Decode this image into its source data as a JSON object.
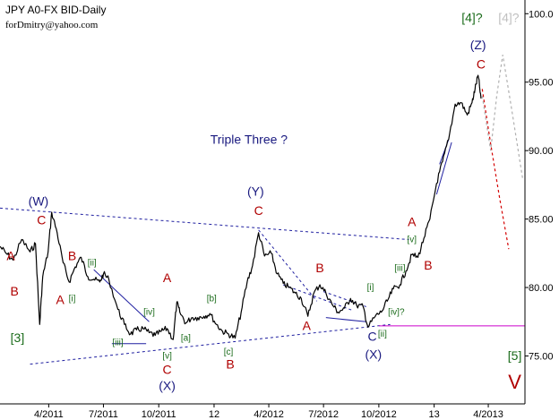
{
  "header": {
    "title": "JPY A0-FX BID-Daily",
    "author": "forDmitry@yahoo.com"
  },
  "chart_data": {
    "type": "line",
    "subtitle_note": "Triple Three ?",
    "y_ticks": [
      75.0,
      80.0,
      85.0,
      90.0,
      95.0,
      100.0
    ],
    "y_tick_labels": [
      "75.00",
      "80.00",
      "85.00",
      "90.00",
      "95.00",
      "100.0"
    ],
    "ylim": [
      71.5,
      101.0
    ],
    "xlim": [
      "2011-01-10",
      "2013-06-01"
    ],
    "x_ticks": [
      "2011-04-01",
      "2011-07-01",
      "2011-10-01",
      "2012-01-01",
      "2012-04-01",
      "2012-07-01",
      "2012-10-01",
      "2013-01-01",
      "2013-04-01"
    ],
    "x_tick_labels": [
      "4/2011",
      "7/2011",
      "10/2011",
      "12",
      "4/2012",
      "7/2012",
      "10/2012",
      "13",
      "4/2013"
    ],
    "series": [
      {
        "points": [
          [
            "2011-01-10",
            83.0
          ],
          [
            "2011-01-20",
            82.5
          ],
          [
            "2011-02-01",
            82.0
          ],
          [
            "2011-02-15",
            83.5
          ],
          [
            "2011-03-01",
            82.6
          ],
          [
            "2011-03-10",
            83.2
          ],
          [
            "2011-03-17",
            77.3
          ],
          [
            "2011-03-22",
            80.8
          ],
          [
            "2011-03-31",
            82.6
          ],
          [
            "2011-04-06",
            85.5
          ],
          [
            "2011-04-15",
            84.0
          ],
          [
            "2011-04-25",
            81.8
          ],
          [
            "2011-05-05",
            80.4
          ],
          [
            "2011-05-15",
            81.5
          ],
          [
            "2011-05-25",
            82.2
          ],
          [
            "2011-06-05",
            80.8
          ],
          [
            "2011-06-15",
            80.6
          ],
          [
            "2011-06-25",
            80.4
          ],
          [
            "2011-07-01",
            81.0
          ],
          [
            "2011-07-10",
            80.6
          ],
          [
            "2011-07-25",
            78.4
          ],
          [
            "2011-08-05",
            77.3
          ],
          [
            "2011-08-15",
            76.6
          ],
          [
            "2011-08-25",
            76.9
          ],
          [
            "2011-09-05",
            77.0
          ],
          [
            "2011-09-15",
            76.7
          ],
          [
            "2011-09-25",
            76.5
          ],
          [
            "2011-10-05",
            76.8
          ],
          [
            "2011-10-15",
            77.0
          ],
          [
            "2011-10-25",
            76.2
          ],
          [
            "2011-10-31",
            78.9
          ],
          [
            "2011-11-05",
            78.2
          ],
          [
            "2011-11-15",
            77.4
          ],
          [
            "2011-11-25",
            77.8
          ],
          [
            "2011-12-05",
            77.8
          ],
          [
            "2011-12-15",
            77.9
          ],
          [
            "2011-12-25",
            78.1
          ],
          [
            "2012-01-05",
            77.3
          ],
          [
            "2012-01-15",
            76.8
          ],
          [
            "2012-01-25",
            76.6
          ],
          [
            "2012-02-05",
            76.3
          ],
          [
            "2012-02-15",
            78.2
          ],
          [
            "2012-02-25",
            80.4
          ],
          [
            "2012-03-05",
            81.6
          ],
          [
            "2012-03-15",
            84.0
          ],
          [
            "2012-03-25",
            82.3
          ],
          [
            "2012-04-05",
            82.5
          ],
          [
            "2012-04-15",
            81.0
          ],
          [
            "2012-04-25",
            80.3
          ],
          [
            "2012-05-05",
            80.0
          ],
          [
            "2012-05-15",
            79.6
          ],
          [
            "2012-05-25",
            79.2
          ],
          [
            "2012-06-05",
            77.9
          ],
          [
            "2012-06-15",
            79.6
          ],
          [
            "2012-06-25",
            80.2
          ],
          [
            "2012-07-05",
            79.6
          ],
          [
            "2012-07-15",
            78.8
          ],
          [
            "2012-07-25",
            78.2
          ],
          [
            "2012-08-05",
            78.5
          ],
          [
            "2012-08-15",
            79.2
          ],
          [
            "2012-08-25",
            78.7
          ],
          [
            "2012-09-05",
            78.6
          ],
          [
            "2012-09-13",
            77.1
          ],
          [
            "2012-09-25",
            77.9
          ],
          [
            "2012-10-05",
            78.2
          ],
          [
            "2012-10-15",
            79.0
          ],
          [
            "2012-10-25",
            79.9
          ],
          [
            "2012-11-05",
            80.2
          ],
          [
            "2012-11-15",
            81.2
          ],
          [
            "2012-11-25",
            82.4
          ],
          [
            "2012-12-05",
            82.2
          ],
          [
            "2012-12-15",
            83.6
          ],
          [
            "2012-12-25",
            85.0
          ],
          [
            "2013-01-05",
            87.6
          ],
          [
            "2013-01-15",
            89.2
          ],
          [
            "2013-01-25",
            90.8
          ],
          [
            "2013-02-05",
            93.4
          ],
          [
            "2013-02-15",
            93.5
          ],
          [
            "2013-02-25",
            92.6
          ],
          [
            "2013-03-05",
            93.5
          ],
          [
            "2013-03-10",
            94.5
          ],
          [
            "2013-03-15",
            95.5
          ],
          [
            "2013-03-20",
            93.8
          ]
        ]
      }
    ],
    "forecast_red": [
      [
        "2013-03-22",
        94.5
      ],
      [
        "2013-04-05",
        90.5
      ],
      [
        "2013-04-20",
        86.5
      ],
      [
        "2013-05-05",
        82.8
      ]
    ],
    "forecast_grey": [
      [
        "2013-03-22",
        94.0
      ],
      [
        "2013-04-05",
        90.0
      ],
      [
        "2013-04-15",
        94.0
      ],
      [
        "2013-04-25",
        97.0
      ],
      [
        "2013-05-10",
        93.0
      ],
      [
        "2013-05-28",
        88.0
      ]
    ],
    "trendlines": [
      {
        "style": "dotted",
        "color": "#1f1fa0",
        "from": [
          "2011-01-10",
          85.8
        ],
        "to": [
          "2012-11-20",
          83.5
        ]
      },
      {
        "style": "dotted",
        "color": "#1f1fa0",
        "from": [
          "2011-03-01",
          74.4
        ],
        "to": [
          "2012-10-20",
          77.3
        ]
      },
      {
        "style": "solid",
        "color": "#cc00cc",
        "from": [
          "2012-10-01",
          77.2
        ],
        "to": [
          "2013-06-01",
          77.2
        ]
      },
      {
        "style": "solid",
        "color": "#1f1fa0",
        "from": [
          "2011-06-15",
          81.3
        ],
        "to": [
          "2011-09-15",
          77.5
        ]
      },
      {
        "style": "solid",
        "color": "#1f1fa0",
        "from": [
          "2011-07-15",
          75.9
        ],
        "to": [
          "2011-09-10",
          75.9
        ]
      },
      {
        "style": "dotted",
        "color": "#1f1fa0",
        "from": [
          "2012-03-15",
          84.2
        ],
        "to": [
          "2012-06-20",
          79.0
        ]
      },
      {
        "style": "dotted",
        "color": "#1f1fa0",
        "from": [
          "2012-04-25",
          80.2
        ],
        "to": [
          "2012-08-20",
          78.3
        ]
      },
      {
        "style": "dotted",
        "color": "#1f1fa0",
        "from": [
          "2012-07-01",
          79.7
        ],
        "to": [
          "2012-09-10",
          78.6
        ]
      },
      {
        "style": "solid",
        "color": "#1f1fa0",
        "from": [
          "2012-07-05",
          77.8
        ],
        "to": [
          "2012-09-10",
          77.5
        ]
      },
      {
        "style": "solid",
        "color": "#1f1fa0",
        "from": [
          "2013-01-05",
          86.8
        ],
        "to": [
          "2013-01-30",
          90.6
        ]
      },
      {
        "style": "solid",
        "color": "#1f1fa0",
        "from": [
          "2013-01-10",
          89.0
        ],
        "to": [
          "2013-01-25",
          90.8
        ]
      }
    ],
    "annotations": [
      {
        "text": "(W)",
        "x": "2011-03-15",
        "y": 86.0,
        "color": "#1a1a80",
        "size": 14
      },
      {
        "text": "C",
        "x": "2011-03-20",
        "y": 84.6,
        "color": "#b00000",
        "size": 14
      },
      {
        "text": "A",
        "x": "2011-01-28",
        "y": 82.0,
        "color": "#b00000",
        "size": 14
      },
      {
        "text": "B",
        "x": "2011-02-03",
        "y": 79.4,
        "color": "#b00000",
        "size": 14
      },
      {
        "text": "[3]",
        "x": "2011-02-08",
        "y": 76.0,
        "color": "#1a6b1a",
        "size": 14
      },
      {
        "text": "B",
        "x": "2011-05-10",
        "y": 82.0,
        "color": "#b00000",
        "size": 14
      },
      {
        "text": "A",
        "x": "2011-04-20",
        "y": 78.8,
        "color": "#b00000",
        "size": 14
      },
      {
        "text": "[i]",
        "x": "2011-05-10",
        "y": 79.0,
        "color": "#1a6b1a",
        "size": 10
      },
      {
        "text": "[ii]",
        "x": "2011-06-12",
        "y": 81.6,
        "color": "#1a6b1a",
        "size": 10
      },
      {
        "text": "[iii]",
        "x": "2011-07-25",
        "y": 75.8,
        "color": "#1a6b1a",
        "size": 10
      },
      {
        "text": "[iv]",
        "x": "2011-09-15",
        "y": 78.0,
        "color": "#1a6b1a",
        "size": 10
      },
      {
        "text": "[v]",
        "x": "2011-10-15",
        "y": 74.8,
        "color": "#1a6b1a",
        "size": 10
      },
      {
        "text": "A",
        "x": "2011-10-15",
        "y": 80.4,
        "color": "#b00000",
        "size": 14
      },
      {
        "text": "C",
        "x": "2011-10-15",
        "y": 73.7,
        "color": "#b00000",
        "size": 14
      },
      {
        "text": "(X)",
        "x": "2011-10-15",
        "y": 72.5,
        "color": "#1a1a80",
        "size": 14
      },
      {
        "text": "[a]",
        "x": "2011-11-15",
        "y": 76.1,
        "color": "#1a6b1a",
        "size": 10
      },
      {
        "text": "[b]",
        "x": "2011-12-28",
        "y": 79.0,
        "color": "#1a6b1a",
        "size": 10
      },
      {
        "text": "[c]",
        "x": "2012-01-25",
        "y": 75.1,
        "color": "#1a6b1a",
        "size": 10
      },
      {
        "text": "B",
        "x": "2012-01-28",
        "y": 74.1,
        "color": "#b00000",
        "size": 14
      },
      {
        "text": "Triple Three ?",
        "x": "2012-02-28",
        "y": 90.5,
        "color": "#1a1a80",
        "size": 14
      },
      {
        "text": "(Y)",
        "x": "2012-03-10",
        "y": 86.7,
        "color": "#1a1a80",
        "size": 14
      },
      {
        "text": "C",
        "x": "2012-03-15",
        "y": 85.3,
        "color": "#b00000",
        "size": 14
      },
      {
        "text": "B",
        "x": "2012-06-25",
        "y": 81.1,
        "color": "#b00000",
        "size": 14
      },
      {
        "text": "A",
        "x": "2012-06-03",
        "y": 76.9,
        "color": "#b00000",
        "size": 14
      },
      {
        "text": "[i]",
        "x": "2012-09-17",
        "y": 79.8,
        "color": "#1a6b1a",
        "size": 10
      },
      {
        "text": "C",
        "x": "2012-09-20",
        "y": 76.1,
        "color": "#1a1a80",
        "size": 14
      },
      {
        "text": "(X)",
        "x": "2012-09-22",
        "y": 74.8,
        "color": "#1a1a80",
        "size": 14
      },
      {
        "text": "[ii]",
        "x": "2012-10-07",
        "y": 76.4,
        "color": "#1a6b1a",
        "size": 10
      },
      {
        "text": "[iii]",
        "x": "2012-11-05",
        "y": 81.2,
        "color": "#1a6b1a",
        "size": 10
      },
      {
        "text": "[iv]?",
        "x": "2012-10-30",
        "y": 78.0,
        "color": "#1a6b1a",
        "size": 10
      },
      {
        "text": "A",
        "x": "2012-11-25",
        "y": 84.5,
        "color": "#b00000",
        "size": 14
      },
      {
        "text": "[v]",
        "x": "2012-11-25",
        "y": 83.3,
        "color": "#1a6b1a",
        "size": 10
      },
      {
        "text": "B",
        "x": "2012-12-22",
        "y": 81.3,
        "color": "#b00000",
        "size": 14
      },
      {
        "text": "[4]?",
        "x": "2013-03-05",
        "y": 99.4,
        "color": "#1a6b1a",
        "size": 14
      },
      {
        "text": "(Z)",
        "x": "2013-03-15",
        "y": 97.4,
        "color": "#1a1a80",
        "size": 14
      },
      {
        "text": "C",
        "x": "2013-03-20",
        "y": 96.0,
        "color": "#b00000",
        "size": 14
      },
      {
        "text": "[4]?",
        "x": "2013-05-05",
        "y": 99.4,
        "color": "#c0c0c0",
        "size": 14
      },
      {
        "text": "[5]",
        "x": "2013-05-15",
        "y": 74.7,
        "color": "#1a6b1a",
        "size": 14
      },
      {
        "text": "V",
        "x": "2013-05-15",
        "y": 72.6,
        "color": "#b00000",
        "size": 22
      }
    ]
  }
}
